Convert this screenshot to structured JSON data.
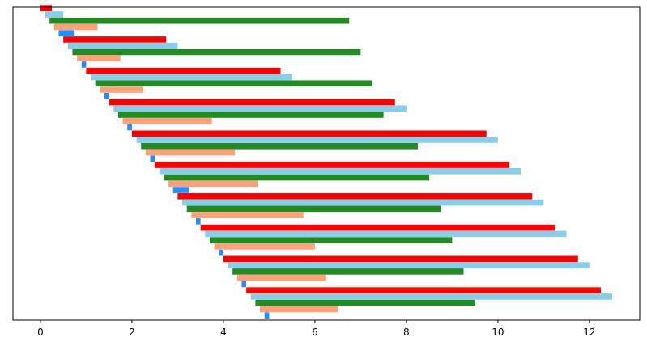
{
  "chart_data": {
    "type": "bar",
    "orientation": "horizontal",
    "title": "",
    "xlabel": "",
    "ylabel": "",
    "xlim": [
      -0.6,
      13.1
    ],
    "ylim": [
      -0.03,
      9.95
    ],
    "y_inverted": true,
    "y_axis_ticks_shown": false,
    "grid": false,
    "legend": "none",
    "x_ticks": [
      0,
      2,
      4,
      6,
      8,
      10,
      12
    ],
    "x_tick_labels": [
      "0",
      "2",
      "4",
      "6",
      "8",
      "10",
      "12"
    ],
    "rows": [
      {
        "y": 0.0,
        "start": 0.0,
        "end": 0.25,
        "color": "#ff0000"
      },
      {
        "y": 0.2,
        "start": 0.1,
        "end": 0.5,
        "color": "#87ceeb"
      },
      {
        "y": 0.4,
        "start": 0.2,
        "end": 6.75,
        "color": "#228b22"
      },
      {
        "y": 0.6,
        "start": 0.3,
        "end": 1.25,
        "color": "#ffa07a"
      },
      {
        "y": 0.8,
        "start": 0.4,
        "end": 0.75,
        "color": "#1e90ff"
      },
      {
        "y": 1.0,
        "start": 0.5,
        "end": 2.75,
        "color": "#ff0000"
      },
      {
        "y": 1.2,
        "start": 0.6,
        "end": 3.0,
        "color": "#87ceeb"
      },
      {
        "y": 1.4,
        "start": 0.7,
        "end": 7.0,
        "color": "#228b22"
      },
      {
        "y": 1.6,
        "start": 0.8,
        "end": 1.75,
        "color": "#ffa07a"
      },
      {
        "y": 1.8,
        "start": 0.9,
        "end": 1.0,
        "color": "#1e90ff"
      },
      {
        "y": 2.0,
        "start": 1.0,
        "end": 5.25,
        "color": "#ff0000"
      },
      {
        "y": 2.2,
        "start": 1.1,
        "end": 5.5,
        "color": "#87ceeb"
      },
      {
        "y": 2.4,
        "start": 1.2,
        "end": 7.25,
        "color": "#228b22"
      },
      {
        "y": 2.6,
        "start": 1.3,
        "end": 2.25,
        "color": "#ffa07a"
      },
      {
        "y": 2.8,
        "start": 1.4,
        "end": 1.5,
        "color": "#1e90ff"
      },
      {
        "y": 3.0,
        "start": 1.5,
        "end": 7.75,
        "color": "#ff0000"
      },
      {
        "y": 3.2,
        "start": 1.6,
        "end": 8.0,
        "color": "#87ceeb"
      },
      {
        "y": 3.4,
        "start": 1.7,
        "end": 7.5,
        "color": "#228b22"
      },
      {
        "y": 3.6,
        "start": 1.8,
        "end": 3.75,
        "color": "#ffa07a"
      },
      {
        "y": 3.8,
        "start": 1.9,
        "end": 2.0,
        "color": "#1e90ff"
      },
      {
        "y": 4.0,
        "start": 2.0,
        "end": 9.75,
        "color": "#ff0000"
      },
      {
        "y": 4.2,
        "start": 2.1,
        "end": 10.0,
        "color": "#87ceeb"
      },
      {
        "y": 4.4,
        "start": 2.2,
        "end": 8.25,
        "color": "#228b22"
      },
      {
        "y": 4.6,
        "start": 2.3,
        "end": 4.25,
        "color": "#ffa07a"
      },
      {
        "y": 4.8,
        "start": 2.4,
        "end": 2.5,
        "color": "#1e90ff"
      },
      {
        "y": 5.0,
        "start": 2.5,
        "end": 10.25,
        "color": "#ff0000"
      },
      {
        "y": 5.2,
        "start": 2.6,
        "end": 10.5,
        "color": "#87ceeb"
      },
      {
        "y": 5.4,
        "start": 2.7,
        "end": 8.5,
        "color": "#228b22"
      },
      {
        "y": 5.6,
        "start": 2.8,
        "end": 4.75,
        "color": "#ffa07a"
      },
      {
        "y": 5.8,
        "start": 2.9,
        "end": 3.25,
        "color": "#1e90ff"
      },
      {
        "y": 6.0,
        "start": 3.0,
        "end": 10.75,
        "color": "#ff0000"
      },
      {
        "y": 6.2,
        "start": 3.1,
        "end": 11.0,
        "color": "#87ceeb"
      },
      {
        "y": 6.4,
        "start": 3.2,
        "end": 8.75,
        "color": "#228b22"
      },
      {
        "y": 6.6,
        "start": 3.3,
        "end": 5.75,
        "color": "#ffa07a"
      },
      {
        "y": 6.8,
        "start": 3.4,
        "end": 3.5,
        "color": "#1e90ff"
      },
      {
        "y": 7.0,
        "start": 3.5,
        "end": 11.25,
        "color": "#ff0000"
      },
      {
        "y": 7.2,
        "start": 3.6,
        "end": 11.5,
        "color": "#87ceeb"
      },
      {
        "y": 7.4,
        "start": 3.7,
        "end": 9.0,
        "color": "#228b22"
      },
      {
        "y": 7.6,
        "start": 3.8,
        "end": 6.0,
        "color": "#ffa07a"
      },
      {
        "y": 7.8,
        "start": 3.9,
        "end": 4.0,
        "color": "#1e90ff"
      },
      {
        "y": 8.0,
        "start": 4.0,
        "end": 11.75,
        "color": "#ff0000"
      },
      {
        "y": 8.2,
        "start": 4.1,
        "end": 12.0,
        "color": "#87ceeb"
      },
      {
        "y": 8.4,
        "start": 4.2,
        "end": 9.25,
        "color": "#228b22"
      },
      {
        "y": 8.6,
        "start": 4.3,
        "end": 6.25,
        "color": "#ffa07a"
      },
      {
        "y": 8.8,
        "start": 4.4,
        "end": 4.5,
        "color": "#1e90ff"
      },
      {
        "y": 9.0,
        "start": 4.5,
        "end": 12.25,
        "color": "#ff0000"
      },
      {
        "y": 9.2,
        "start": 4.6,
        "end": 12.5,
        "color": "#87ceeb"
      },
      {
        "y": 9.4,
        "start": 4.7,
        "end": 9.5,
        "color": "#228b22"
      },
      {
        "y": 9.6,
        "start": 4.8,
        "end": 6.5,
        "color": "#ffa07a"
      },
      {
        "y": 9.8,
        "start": 4.9,
        "end": 5.0,
        "color": "#1e90ff"
      }
    ]
  }
}
